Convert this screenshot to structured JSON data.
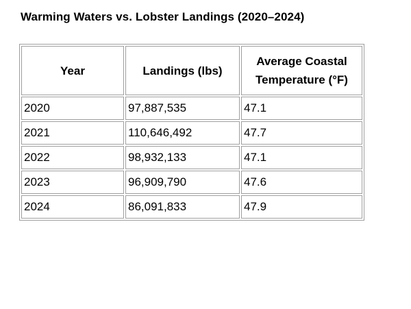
{
  "page": {
    "background": "#ffffff",
    "text_color": "#000000",
    "table_border_color": "#9e9e9e"
  },
  "title": "Warming Waters vs. Lobster Landings (2020–2024)",
  "table": {
    "headers": [
      "Year",
      "Landings (lbs)",
      "Average Coastal Temperature (°F)"
    ],
    "rows": [
      [
        "2020",
        "97,887,535",
        "47.1"
      ],
      [
        "2021",
        "110,646,492",
        "47.7"
      ],
      [
        "2022",
        "98,932,133",
        "47.1"
      ],
      [
        "2023",
        "96,909,790",
        "47.6"
      ],
      [
        "2024",
        "86,091,833",
        "47.9"
      ]
    ]
  },
  "chart_data": {
    "type": "table",
    "title": "Warming Waters vs. Lobster Landings (2020–2024)",
    "columns": [
      "Year",
      "Landings (lbs)",
      "Average Coastal Temperature (°F)"
    ],
    "rows": [
      [
        2020,
        97887535,
        47.1
      ],
      [
        2021,
        110646492,
        47.7
      ],
      [
        2022,
        98932133,
        47.1
      ],
      [
        2023,
        96909790,
        47.6
      ],
      [
        2024,
        86091833,
        47.9
      ]
    ],
    "series": [
      {
        "name": "Landings (lbs)",
        "values": [
          97887535,
          110646492,
          98932133,
          96909790,
          86091833
        ]
      },
      {
        "name": "Average Coastal Temperature (°F)",
        "values": [
          47.1,
          47.7,
          47.1,
          47.6,
          47.9
        ]
      }
    ],
    "x": [
      2020,
      2021,
      2022,
      2023,
      2024
    ],
    "layout": {
      "grid": true,
      "legend_position": "none"
    }
  }
}
